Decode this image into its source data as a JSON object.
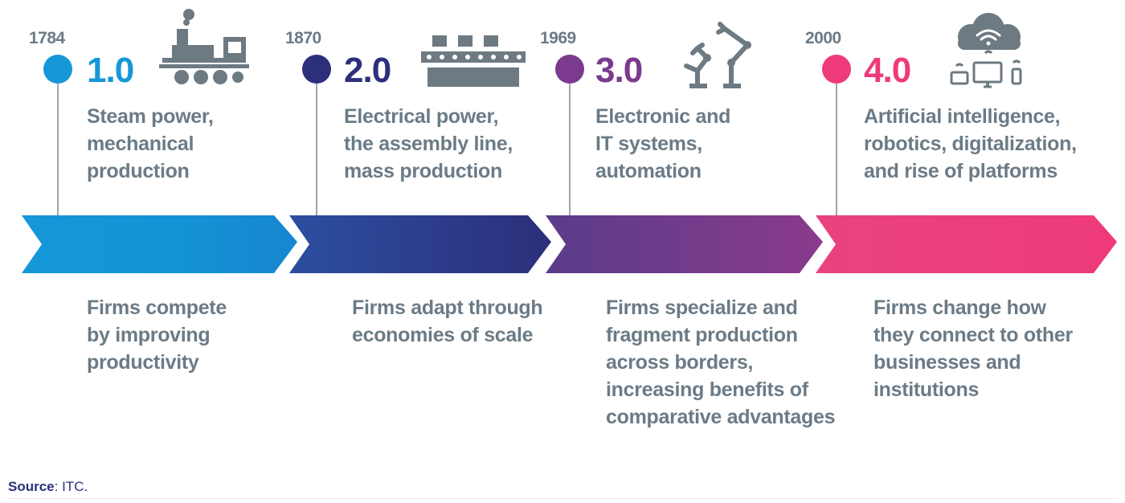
{
  "colors": {
    "era1": "#1597d8",
    "era2": "#2c2f7a",
    "era3": "#7b3a8e",
    "era4": "#ee3a7a",
    "text_gray": "#6b7b86",
    "icon_gray": "#6d7a82"
  },
  "eras": [
    {
      "year": "1784",
      "version": "1.0",
      "icon": "steam-locomotive-icon",
      "headline": "Steam power,\nmechanical\nproduction",
      "effect": "Firms compete\nby improving\nproductivity"
    },
    {
      "year": "1870",
      "version": "2.0",
      "icon": "assembly-line-icon",
      "headline": "Electrical power,\nthe assembly line,\nmass production",
      "effect": "Firms adapt through\neconomies of scale"
    },
    {
      "year": "1969",
      "version": "3.0",
      "icon": "robotic-arms-icon",
      "headline": "Electronic and\nIT systems,\nautomation",
      "effect": "Firms specialize and\nfragment production\nacross borders,\nincreasing benefits of\ncomparative advantages"
    },
    {
      "year": "2000",
      "version": "4.0",
      "icon": "cloud-devices-icon",
      "headline": "Artificial intelligence,\nrobotics, digitalization,\nand rise of platforms",
      "effect": "Firms change how\nthey connect to other\nbusinesses and\ninstitutions"
    }
  ],
  "source": {
    "label": "Source",
    "text": ": ITC."
  }
}
